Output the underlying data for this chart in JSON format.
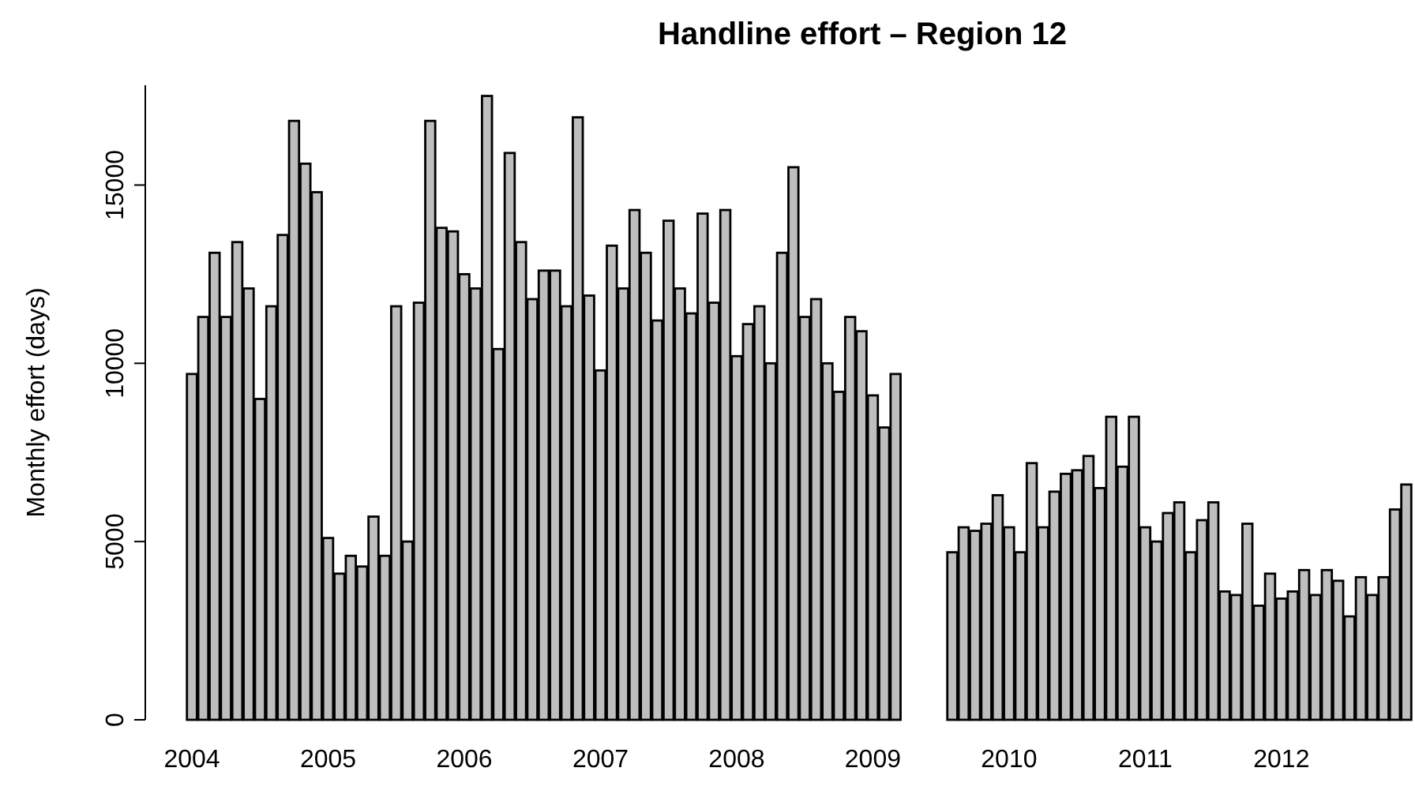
{
  "chart_data": {
    "type": "bar",
    "title": "Handline effort – Region 12",
    "ylabel": "Monthly effort (days)",
    "categories": [
      "2004",
      null,
      null,
      null,
      null,
      null,
      null,
      null,
      null,
      null,
      null,
      null,
      "2005",
      null,
      null,
      null,
      null,
      null,
      null,
      null,
      null,
      null,
      null,
      null,
      "2006",
      null,
      null,
      null,
      null,
      null,
      null,
      null,
      null,
      null,
      null,
      null,
      "2007",
      null,
      null,
      null,
      null,
      null,
      null,
      null,
      null,
      null,
      null,
      null,
      "2008",
      null,
      null,
      null,
      null,
      null,
      null,
      null,
      null,
      null,
      null,
      null,
      "2009",
      null,
      null,
      null,
      null,
      null,
      null,
      null,
      null,
      null,
      null,
      null,
      "2010",
      null,
      null,
      null,
      null,
      null,
      null,
      null,
      null,
      null,
      null,
      null,
      "2011",
      null,
      null,
      null,
      null,
      null,
      null,
      null,
      null,
      null,
      null,
      null,
      "2012",
      null,
      null,
      null,
      null,
      null,
      null,
      null,
      null,
      null,
      null,
      null
    ],
    "values": [
      9700,
      11300,
      13100,
      11300,
      13400,
      12100,
      9000,
      11600,
      13600,
      16800,
      15600,
      14800,
      5100,
      4100,
      4600,
      4300,
      5700,
      4600,
      11600,
      5000,
      11700,
      16800,
      13800,
      13700,
      12500,
      12100,
      17500,
      10400,
      15900,
      13400,
      11800,
      12600,
      12600,
      11600,
      16900,
      11900,
      9800,
      13300,
      12100,
      14300,
      13100,
      11200,
      14000,
      12100,
      11400,
      14200,
      11700,
      14300,
      10200,
      11100,
      11600,
      10000,
      13100,
      15500,
      11300,
      11800,
      10000,
      9200,
      11300,
      10900,
      9100,
      8200,
      9700,
      null,
      null,
      null,
      null,
      4700,
      5400,
      5300,
      5500,
      6300,
      5400,
      4700,
      7200,
      5400,
      6400,
      6900,
      7000,
      7400,
      6500,
      8500,
      7100,
      8500,
      5400,
      5000,
      5800,
      6100,
      4700,
      5600,
      6100,
      3600,
      3500,
      5500,
      3200,
      4100,
      3400,
      3600,
      4200,
      3500,
      4200,
      3900,
      2900,
      4000,
      3500,
      4000,
      5900,
      6600
    ],
    "color": "#bebebe",
    "ylim": [
      0,
      17800
    ],
    "yticks": [
      0,
      5000,
      10000,
      15000
    ],
    "grid": false
  }
}
